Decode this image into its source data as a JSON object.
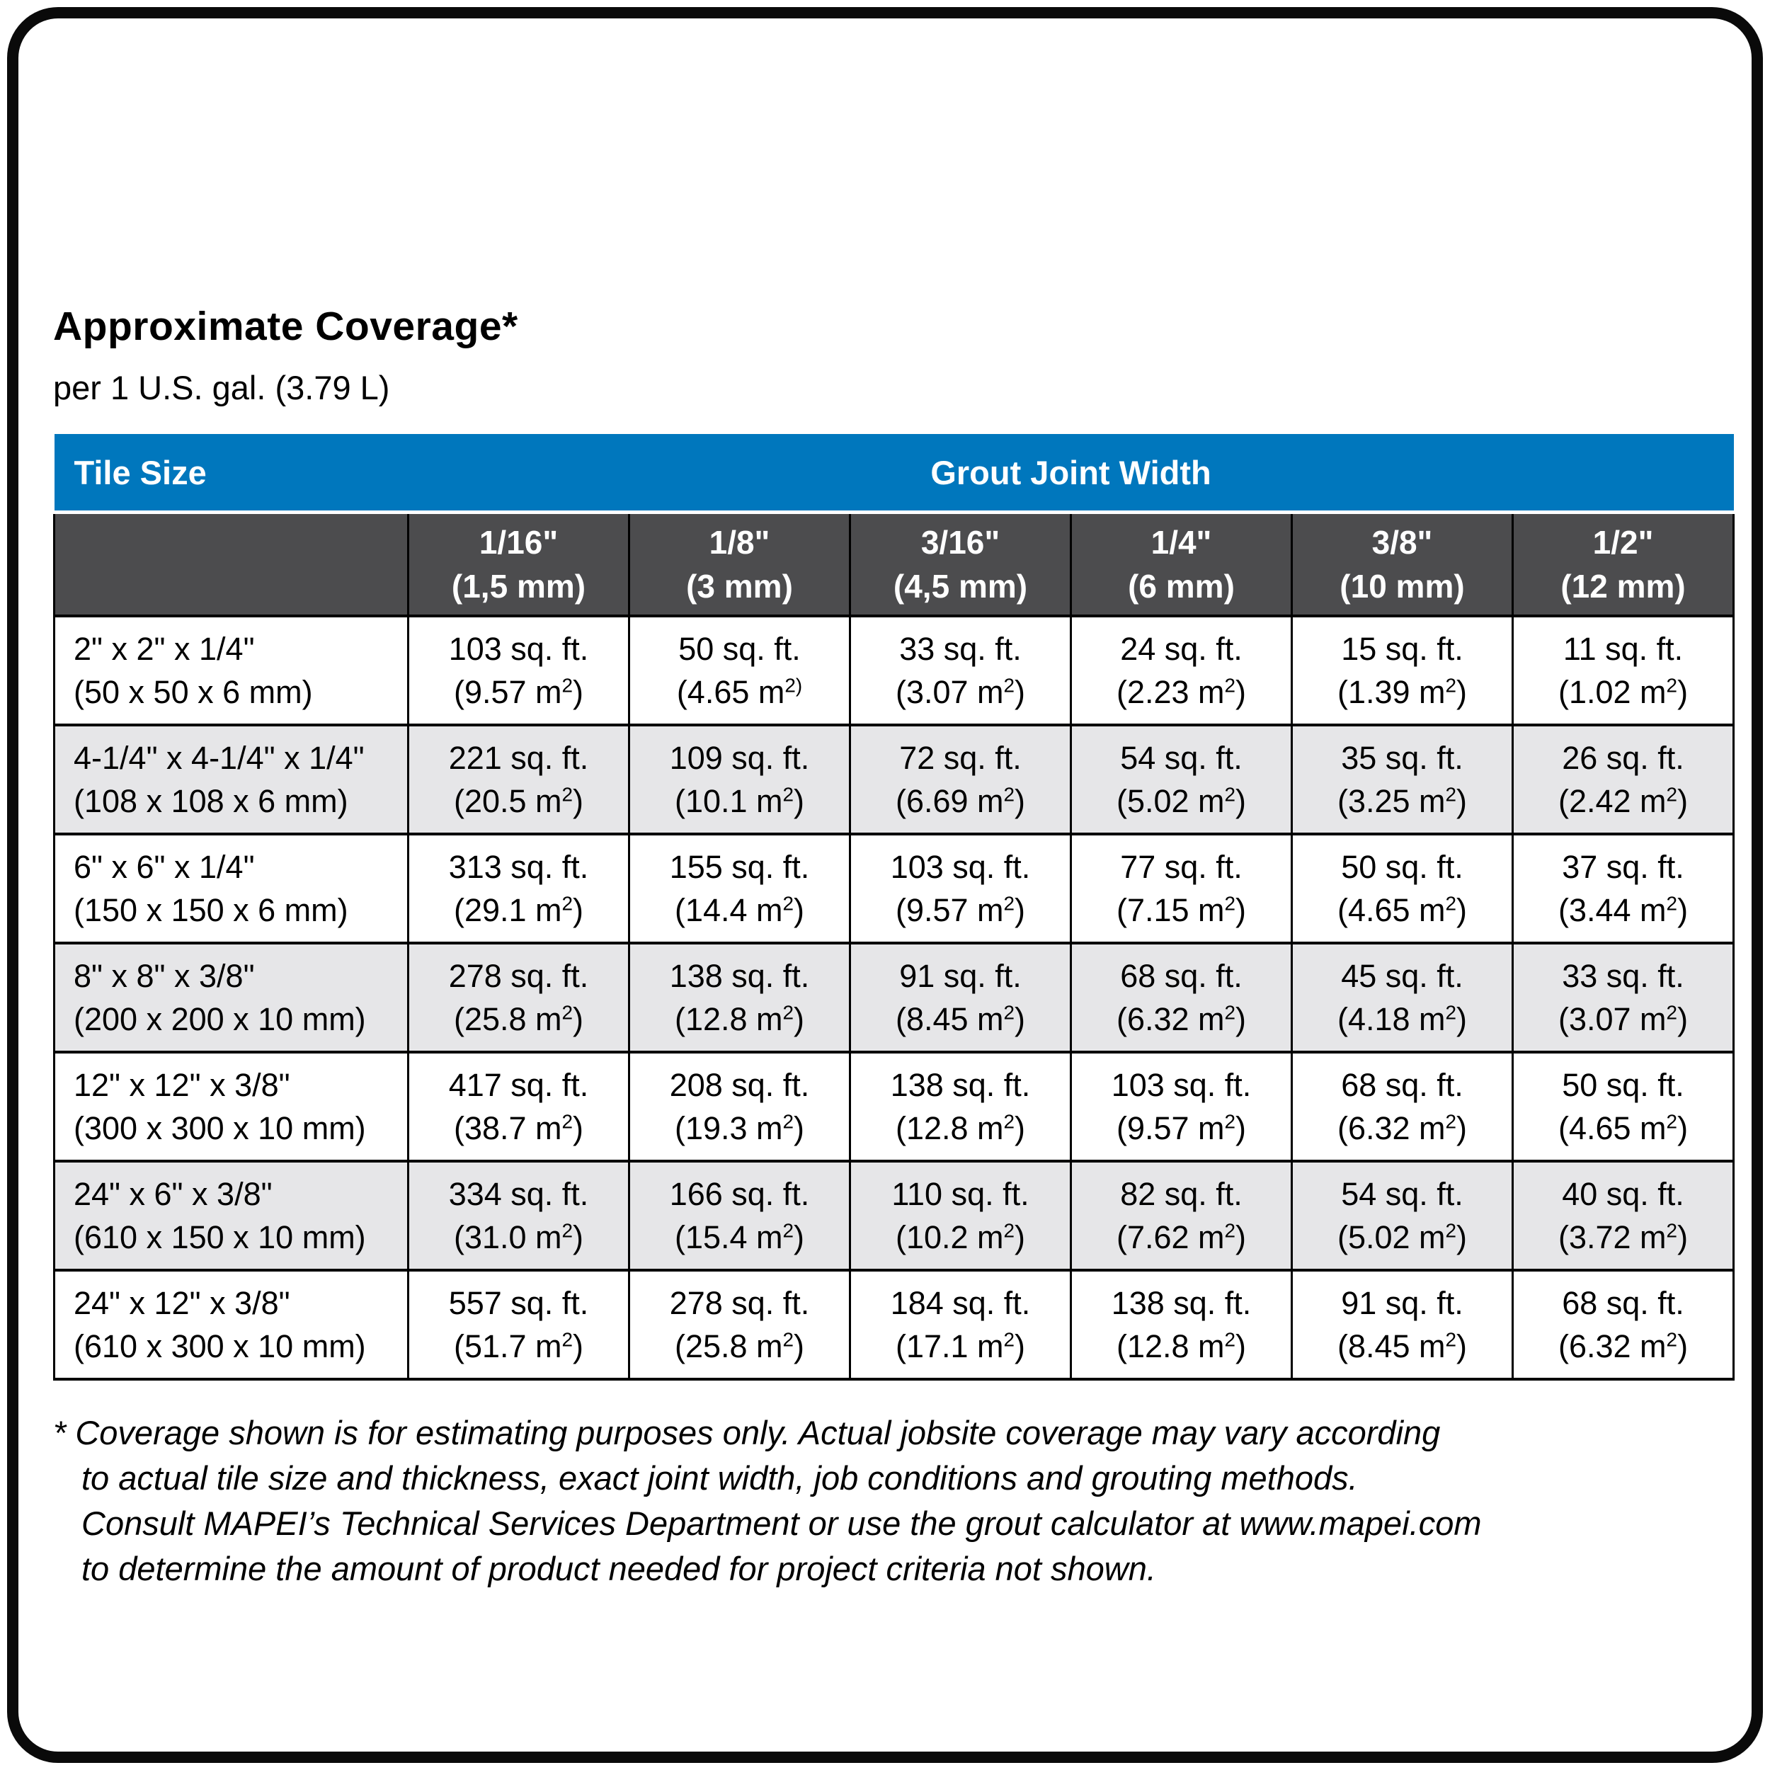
{
  "page": {
    "title": "Approximate Coverage*",
    "subtitle": "per 1 U.S. gal. (3.79 L)"
  },
  "colors": {
    "header_blue": "#0077BD",
    "header_dark_gray": "#4C4C4E",
    "row_alt_gray": "#E6E6E8",
    "grid_black": "#000000"
  },
  "table": {
    "header": {
      "tile_size": "Tile Size",
      "grout_joint_width": "Grout Joint Width"
    },
    "joint_widths": [
      {
        "inches": "1/16\"",
        "metric": "(1,5 mm)"
      },
      {
        "inches": "1/8\"",
        "metric": "(3 mm)"
      },
      {
        "inches": "3/16\"",
        "metric": "(4,5 mm)"
      },
      {
        "inches": "1/4\"",
        "metric": "(6 mm)"
      },
      {
        "inches": "3/8\"",
        "metric": "(10 mm)"
      },
      {
        "inches": "1/2\"",
        "metric": "(12 mm)"
      }
    ],
    "rows": [
      {
        "tile_size": "2\" x 2\" x 1/4\"",
        "tile_size_metric": "(50 x 50 x 6 mm)",
        "coverages": [
          {
            "imperial": "103 sq. ft.",
            "metric": "(9.57 m²)"
          },
          {
            "imperial": "50 sq. ft.",
            "metric": "(4.65 m²⁾"
          },
          {
            "imperial": "33 sq. ft.",
            "metric": "(3.07 m²)"
          },
          {
            "imperial": "24 sq. ft.",
            "metric": "(2.23 m²)"
          },
          {
            "imperial": "15 sq. ft.",
            "metric": "(1.39 m²)"
          },
          {
            "imperial": "11 sq. ft.",
            "metric": "(1.02 m²)"
          }
        ]
      },
      {
        "tile_size": "4-1/4\" x 4-1/4\" x 1/4\"",
        "tile_size_metric": "(108 x 108 x 6 mm)",
        "coverages": [
          {
            "imperial": "221 sq. ft.",
            "metric": "(20.5 m²)"
          },
          {
            "imperial": "109 sq. ft.",
            "metric": "(10.1 m²)"
          },
          {
            "imperial": "72 sq. ft.",
            "metric": "(6.69 m²)"
          },
          {
            "imperial": "54 sq. ft.",
            "metric": "(5.02 m²)"
          },
          {
            "imperial": "35 sq. ft.",
            "metric": "(3.25 m²)"
          },
          {
            "imperial": "26 sq. ft.",
            "metric": "(2.42 m²)"
          }
        ]
      },
      {
        "tile_size": "6\" x 6\" x 1/4\"",
        "tile_size_metric": "(150 x 150 x 6 mm)",
        "coverages": [
          {
            "imperial": "313 sq. ft.",
            "metric": "(29.1 m²)"
          },
          {
            "imperial": "155 sq. ft.",
            "metric": "(14.4 m²)"
          },
          {
            "imperial": "103 sq. ft.",
            "metric": "(9.57 m²)"
          },
          {
            "imperial": "77 sq. ft.",
            "metric": "(7.15 m²)"
          },
          {
            "imperial": "50 sq. ft.",
            "metric": "(4.65 m²)"
          },
          {
            "imperial": "37 sq. ft.",
            "metric": "(3.44 m²)"
          }
        ]
      },
      {
        "tile_size": "8\" x 8\" x 3/8\"",
        "tile_size_metric": "(200 x 200 x 10 mm)",
        "coverages": [
          {
            "imperial": "278 sq. ft.",
            "metric": "(25.8 m²)"
          },
          {
            "imperial": "138 sq. ft.",
            "metric": "(12.8 m²)"
          },
          {
            "imperial": "91 sq. ft.",
            "metric": "(8.45 m²)"
          },
          {
            "imperial": "68 sq. ft.",
            "metric": "(6.32 m²)"
          },
          {
            "imperial": "45 sq. ft.",
            "metric": "(4.18 m²)"
          },
          {
            "imperial": "33 sq. ft.",
            "metric": "(3.07 m²)"
          }
        ]
      },
      {
        "tile_size": "12\" x 12\" x 3/8\"",
        "tile_size_metric": "(300 x 300 x 10 mm)",
        "coverages": [
          {
            "imperial": "417 sq. ft.",
            "metric": "(38.7 m²)"
          },
          {
            "imperial": "208 sq. ft.",
            "metric": "(19.3 m²)"
          },
          {
            "imperial": "138 sq. ft.",
            "metric": "(12.8 m²)"
          },
          {
            "imperial": "103 sq. ft.",
            "metric": "(9.57 m²)"
          },
          {
            "imperial": "68 sq. ft.",
            "metric": "(6.32 m²)"
          },
          {
            "imperial": "50 sq. ft.",
            "metric": "(4.65 m²)"
          }
        ]
      },
      {
        "tile_size": "24\" x 6\" x 3/8\"",
        "tile_size_metric": "(610 x 150 x 10 mm)",
        "coverages": [
          {
            "imperial": "334 sq. ft.",
            "metric": "(31.0 m²)"
          },
          {
            "imperial": "166 sq. ft.",
            "metric": "(15.4 m²)"
          },
          {
            "imperial": "110 sq. ft.",
            "metric": "(10.2 m²)"
          },
          {
            "imperial": "82 sq. ft.",
            "metric": "(7.62 m²)"
          },
          {
            "imperial": "54 sq. ft.",
            "metric": "(5.02 m²)"
          },
          {
            "imperial": "40 sq. ft.",
            "metric": "(3.72 m²)"
          }
        ]
      },
      {
        "tile_size": "24\" x 12\" x 3/8\"",
        "tile_size_metric": "(610 x 300 x 10 mm)",
        "coverages": [
          {
            "imperial": "557 sq. ft.",
            "metric": "(51.7 m²)"
          },
          {
            "imperial": "278 sq. ft.",
            "metric": "(25.8 m²)"
          },
          {
            "imperial": "184 sq. ft.",
            "metric": "(17.1 m²)"
          },
          {
            "imperial": "138 sq. ft.",
            "metric": "(12.8 m²)"
          },
          {
            "imperial": "91 sq. ft.",
            "metric": "(8.45 m²)"
          },
          {
            "imperial": "68 sq. ft.",
            "metric": "(6.32 m²)"
          }
        ]
      }
    ]
  },
  "footnote": {
    "marker": "*",
    "lines": [
      "Coverage shown is for estimating purposes only. Actual jobsite coverage may vary according",
      "to actual tile size and thickness, exact joint width, job conditions and grouting methods.",
      "Consult MAPEI’s Technical Services Department or use the grout calculator at www.mapei.com",
      "to determine the amount of product needed for project criteria not shown."
    ]
  }
}
